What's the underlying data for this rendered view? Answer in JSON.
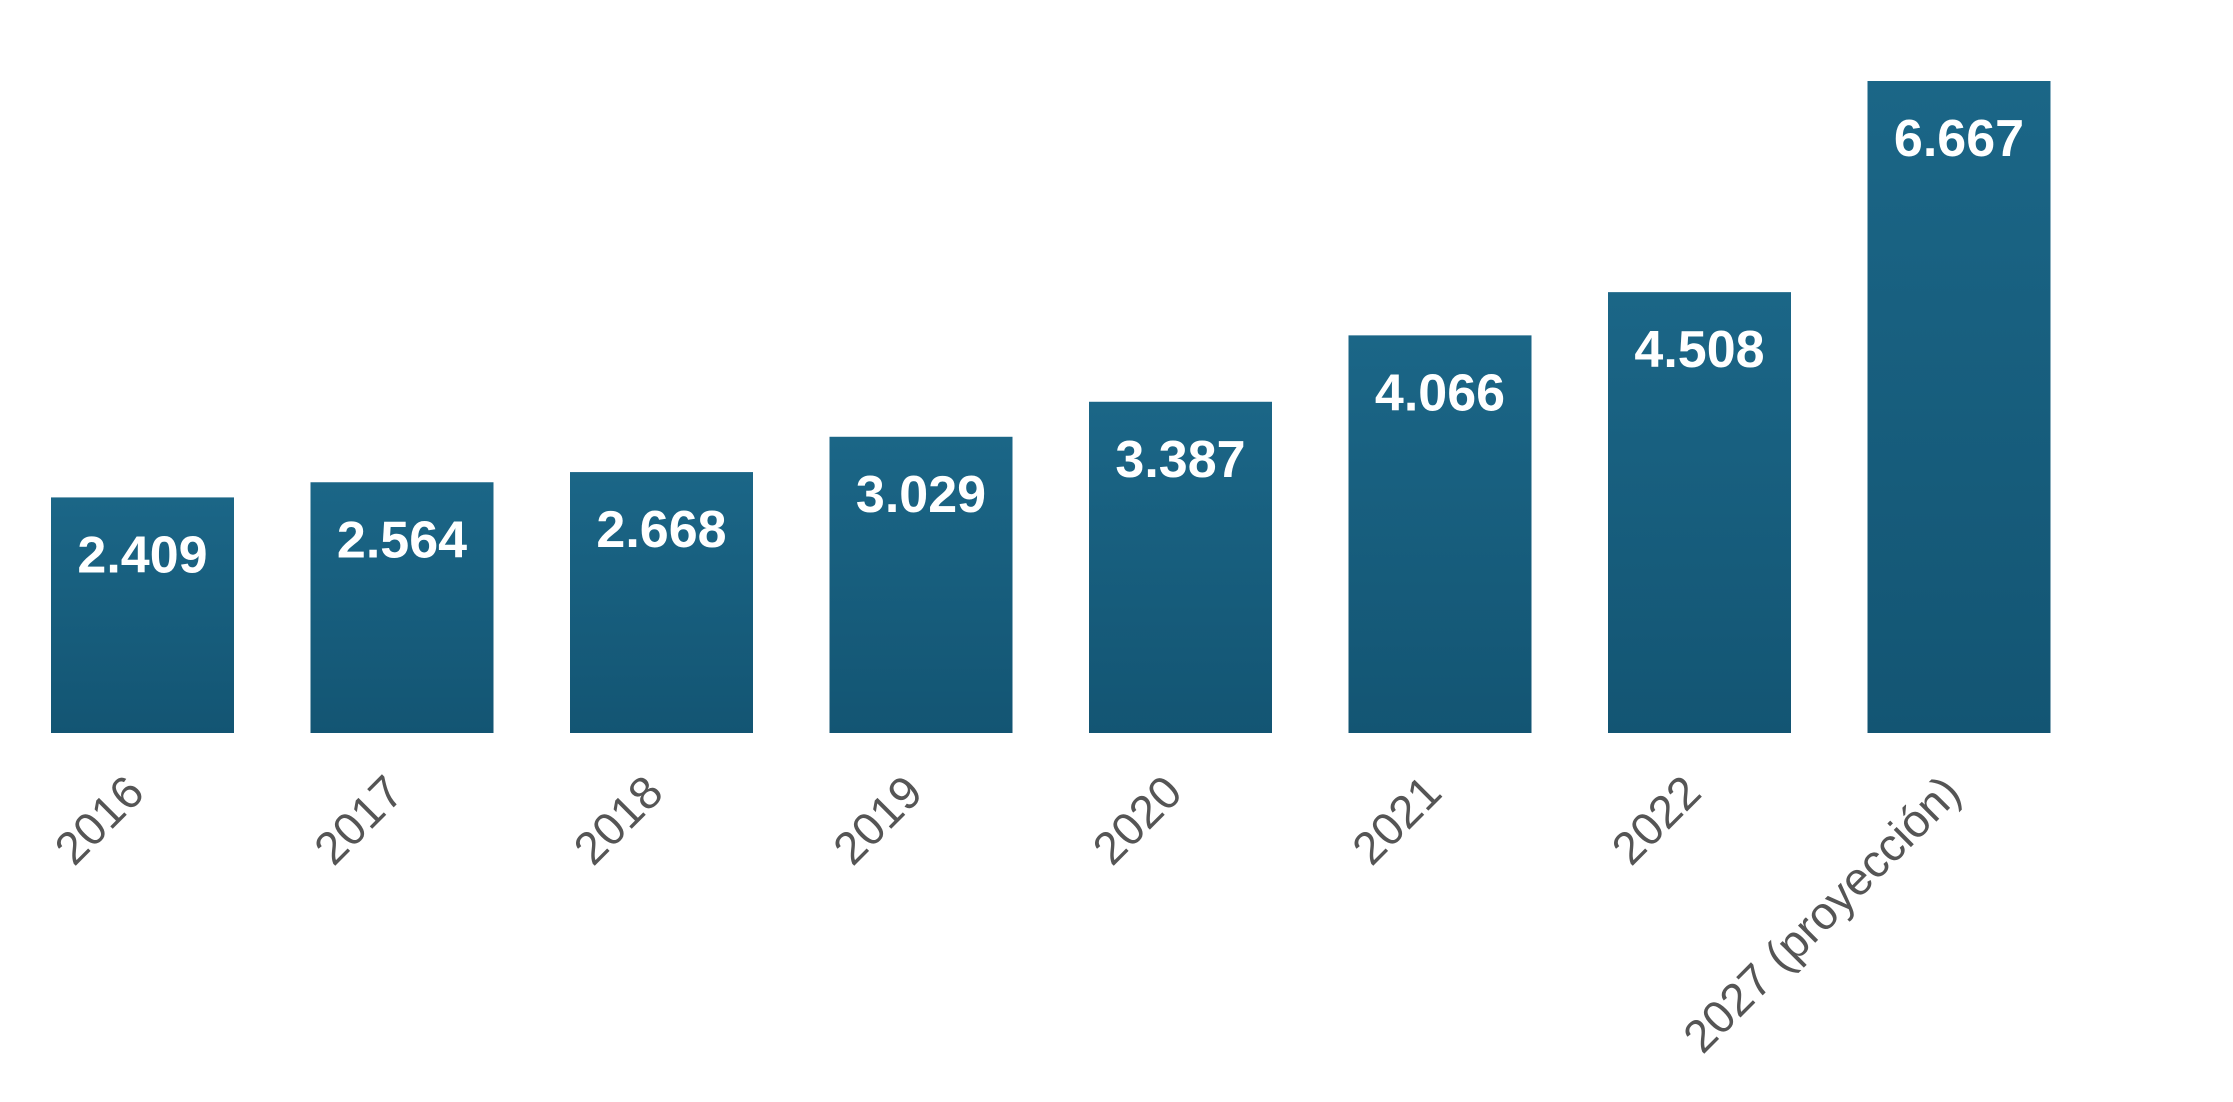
{
  "chart_data": {
    "type": "bar",
    "title": "",
    "xlabel": "",
    "ylabel": "",
    "categories": [
      "2016",
      "2017",
      "2018",
      "2019",
      "2020",
      "2021",
      "2022",
      "2027 (proyección)"
    ],
    "values": [
      2409,
      2564,
      2668,
      3029,
      3387,
      4066,
      4508,
      6667
    ],
    "data_labels": [
      "2.409",
      "2.564",
      "2.668",
      "3.029",
      "3.387",
      "4.066",
      "4.508",
      "6.667"
    ],
    "ylim": [
      0,
      6667
    ],
    "grid": false,
    "legend": "none",
    "bar_color_top": "#1b6687",
    "bar_color_bottom": "#135573",
    "tick_label_color": "#555555",
    "data_label_color": "#ffffff"
  }
}
